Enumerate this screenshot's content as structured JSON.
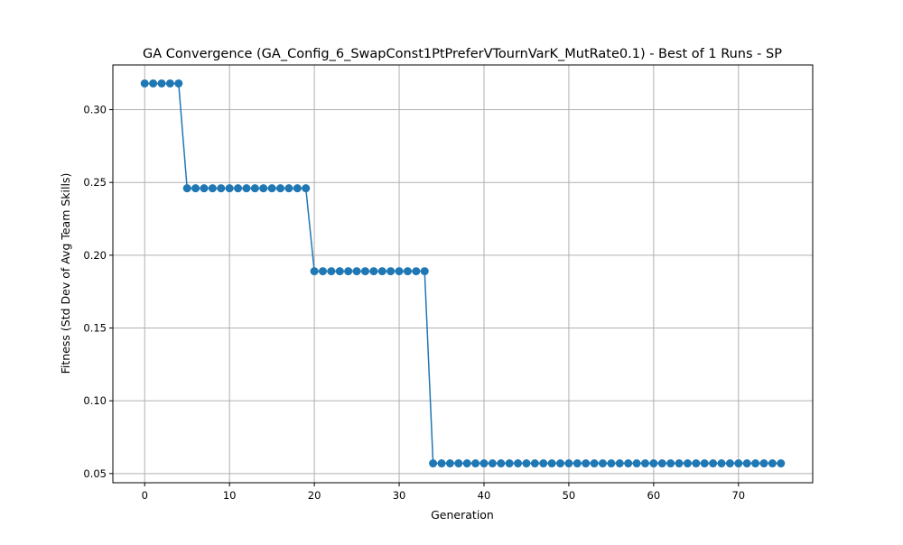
{
  "chart_data": {
    "type": "line",
    "title": "GA Convergence (GA_Config_6_SwapConst1PtPreferVTournVarK_MutRate0.1) - Best of 1 Runs - SP",
    "xlabel": "Generation",
    "ylabel": "Fitness (Std Dev of Avg Team Skills)",
    "xlim": [
      -3.75,
      78.75
    ],
    "ylim": [
      0.0437,
      0.3307
    ],
    "xticks": [
      0,
      10,
      20,
      30,
      40,
      50,
      60,
      70
    ],
    "yticks": [
      0.05,
      0.1,
      0.15,
      0.2,
      0.25,
      0.3
    ],
    "ytick_labels": [
      "0.05",
      "0.10",
      "0.15",
      "0.20",
      "0.25",
      "0.30"
    ],
    "grid": true,
    "colors": {
      "series": "#1f77b4",
      "grid": "#b0b0b0"
    },
    "series": [
      {
        "marker": "circle",
        "x": [
          0,
          1,
          2,
          3,
          4,
          5,
          6,
          7,
          8,
          9,
          10,
          11,
          12,
          13,
          14,
          15,
          16,
          17,
          18,
          19,
          20,
          21,
          22,
          23,
          24,
          25,
          26,
          27,
          28,
          29,
          30,
          31,
          32,
          33,
          34,
          35,
          36,
          37,
          38,
          39,
          40,
          41,
          42,
          43,
          44,
          45,
          46,
          47,
          48,
          49,
          50,
          51,
          52,
          53,
          54,
          55,
          56,
          57,
          58,
          59,
          60,
          61,
          62,
          63,
          64,
          65,
          66,
          67,
          68,
          69,
          70,
          71,
          72,
          73,
          74,
          75
        ],
        "y": [
          0.318,
          0.318,
          0.318,
          0.318,
          0.318,
          0.246,
          0.246,
          0.246,
          0.246,
          0.246,
          0.246,
          0.246,
          0.246,
          0.246,
          0.246,
          0.246,
          0.246,
          0.246,
          0.246,
          0.246,
          0.189,
          0.189,
          0.189,
          0.189,
          0.189,
          0.189,
          0.189,
          0.189,
          0.189,
          0.189,
          0.189,
          0.189,
          0.189,
          0.189,
          0.057,
          0.057,
          0.057,
          0.057,
          0.057,
          0.057,
          0.057,
          0.057,
          0.057,
          0.057,
          0.057,
          0.057,
          0.057,
          0.057,
          0.057,
          0.057,
          0.057,
          0.057,
          0.057,
          0.057,
          0.057,
          0.057,
          0.057,
          0.057,
          0.057,
          0.057,
          0.057,
          0.057,
          0.057,
          0.057,
          0.057,
          0.057,
          0.057,
          0.057,
          0.057,
          0.057,
          0.057,
          0.057,
          0.057,
          0.057,
          0.057,
          0.057
        ]
      }
    ]
  }
}
